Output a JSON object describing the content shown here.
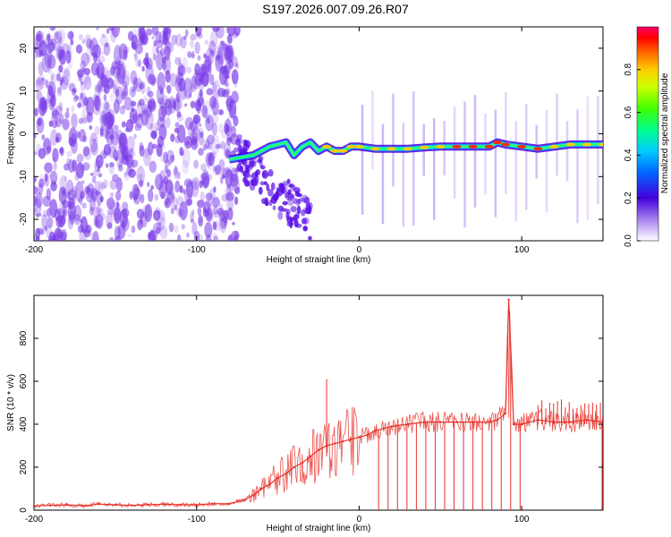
{
  "title": "S197.2026.007.09.26.R07",
  "colors": {
    "signal": "#e8312a",
    "ridge": "#4400dd",
    "scatter": "#7a3be8"
  },
  "chart_data": [
    {
      "type": "heatmap",
      "title": "S197.2026.007.09.26.R07",
      "xlabel": "Height of straight line (km)",
      "ylabel": "Frequency (Hz)",
      "xlim": [
        -200,
        150
      ],
      "ylim": [
        -25,
        25
      ],
      "xticks": [
        -200,
        -100,
        0,
        100
      ],
      "yticks": [
        -20,
        -10,
        0,
        10,
        20
      ],
      "ridge": {
        "x": [
          -80,
          -65,
          -55,
          -45,
          -40,
          -35,
          -30,
          -25,
          -20,
          -15,
          -10,
          -5,
          0,
          10,
          20,
          30,
          40,
          50,
          60,
          70,
          80,
          85,
          90,
          100,
          110,
          120,
          130,
          140,
          150
        ],
        "freq": [
          -6,
          -5,
          -3,
          -2,
          -5,
          -3,
          -2,
          -4,
          -3,
          -4,
          -4,
          -3,
          -3,
          -3.5,
          -3.5,
          -3.5,
          -3.2,
          -3,
          -3,
          -3,
          -3,
          -2,
          -2.5,
          -3,
          -3.5,
          -3,
          -2.5,
          -2.5,
          -2.5
        ]
      },
      "colorbar": {
        "label": "Normalized spectral amplitude",
        "range": [
          0,
          1
        ],
        "ticks": [
          "0.0",
          "0.2",
          "0.4",
          "0.6",
          "0.8"
        ]
      }
    },
    {
      "type": "line",
      "title": "",
      "xlabel": "Height of straight line (km)",
      "ylabel": "SNR (10 * v/v)",
      "xlim": [
        -200,
        150
      ],
      "ylim": [
        0,
        1000
      ],
      "xticks": [
        -200,
        -100,
        0,
        100
      ],
      "yticks": [
        0,
        200,
        400,
        600,
        800
      ],
      "series": [
        {
          "name": "SNR",
          "x": [
            -200,
            -190,
            -180,
            -170,
            -160,
            -150,
            -140,
            -130,
            -120,
            -110,
            -100,
            -90,
            -80,
            -75,
            -70,
            -65,
            -60,
            -55,
            -50,
            -45,
            -40,
            -35,
            -30,
            -25,
            -20,
            -15,
            -10,
            -5,
            0,
            5,
            10,
            15,
            20,
            30,
            40,
            50,
            60,
            70,
            80,
            85,
            90,
            92,
            95,
            100,
            110,
            120,
            130,
            140,
            150
          ],
          "values": [
            20,
            22,
            25,
            20,
            28,
            25,
            22,
            25,
            28,
            25,
            25,
            30,
            30,
            40,
            50,
            70,
            100,
            120,
            150,
            170,
            200,
            220,
            250,
            280,
            300,
            310,
            320,
            330,
            340,
            350,
            370,
            380,
            390,
            400,
            410,
            410,
            410,
            410,
            410,
            420,
            450,
            980,
            400,
            400,
            420,
            410,
            410,
            420,
            410
          ]
        }
      ]
    }
  ]
}
